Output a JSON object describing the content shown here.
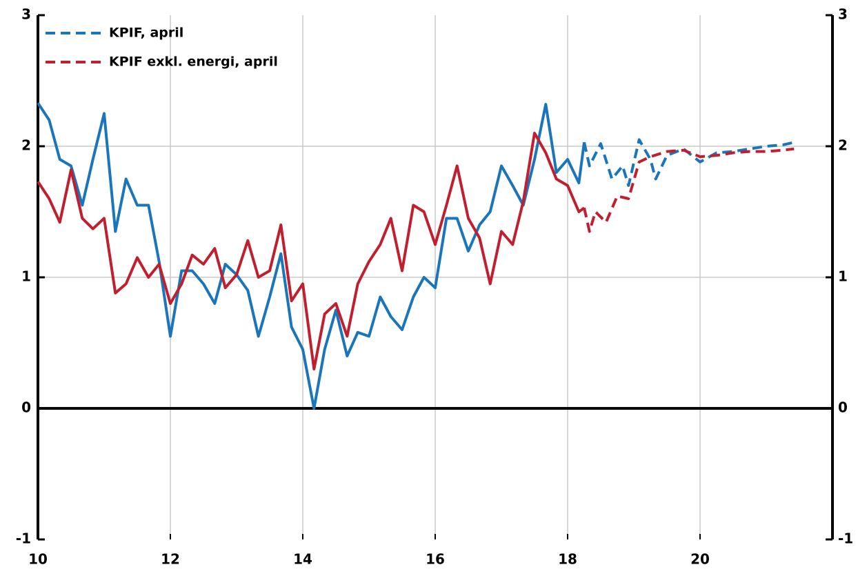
{
  "chart_data": {
    "type": "line",
    "xlim": [
      10,
      22
    ],
    "xticks": [
      10,
      12,
      14,
      16,
      18,
      20
    ],
    "ylim": [
      -1,
      3
    ],
    "yticks": [
      3,
      2,
      1,
      0,
      -1
    ],
    "grid": true,
    "legend": "upper left",
    "right_axis": true,
    "series": [
      {
        "color": "#1b75bb",
        "dashed": false,
        "x": [
          10.0,
          10.17,
          10.33,
          10.5,
          10.67,
          10.83,
          11.0,
          11.17,
          11.33,
          11.5,
          11.67,
          11.83,
          12.0,
          12.17,
          12.33,
          12.5,
          12.67,
          12.83,
          13.0,
          13.17,
          13.33,
          13.5,
          13.67,
          13.83,
          14.0,
          14.17,
          14.33,
          14.5,
          14.67,
          14.83,
          15.0,
          15.17,
          15.33,
          15.5,
          15.67,
          15.83,
          16.0,
          16.17,
          16.33,
          16.5,
          16.67,
          16.83,
          17.0,
          17.17,
          17.33,
          17.5,
          17.67,
          17.83,
          18.0,
          18.17,
          18.25
        ],
        "values": [
          2.33,
          2.2,
          1.9,
          1.85,
          1.55,
          1.9,
          2.25,
          1.35,
          1.75,
          1.55,
          1.55,
          1.12,
          0.55,
          1.05,
          1.05,
          0.95,
          0.8,
          1.1,
          1.02,
          0.9,
          0.55,
          0.85,
          1.18,
          0.62,
          0.45,
          0.0,
          0.45,
          0.75,
          0.4,
          0.58,
          0.55,
          0.85,
          0.7,
          0.6,
          0.85,
          1.0,
          0.92,
          1.45,
          1.45,
          1.2,
          1.4,
          1.5,
          1.85,
          1.7,
          1.55,
          1.9,
          2.32,
          1.8,
          1.9,
          1.72,
          2.03
        ]
      },
      {
        "name": "KPIF, april",
        "color": "#1b75bb",
        "dashed": true,
        "x": [
          18.25,
          18.33,
          18.5,
          18.67,
          18.83,
          18.92,
          19.08,
          19.25,
          19.33,
          19.5,
          19.75,
          20.0,
          20.25,
          20.5,
          20.75,
          21.0,
          21.25,
          21.42
        ],
        "values": [
          2.03,
          1.85,
          2.02,
          1.75,
          1.85,
          1.7,
          2.05,
          1.9,
          1.75,
          1.93,
          1.98,
          1.88,
          1.95,
          1.96,
          1.98,
          2.0,
          2.01,
          2.03
        ]
      },
      {
        "color": "#c01f2f",
        "dashed": false,
        "x": [
          10.0,
          10.17,
          10.33,
          10.5,
          10.67,
          10.83,
          11.0,
          11.17,
          11.33,
          11.5,
          11.67,
          11.83,
          12.0,
          12.17,
          12.33,
          12.5,
          12.67,
          12.83,
          13.0,
          13.17,
          13.33,
          13.5,
          13.67,
          13.83,
          14.0,
          14.17,
          14.33,
          14.5,
          14.67,
          14.83,
          15.0,
          15.17,
          15.33,
          15.5,
          15.67,
          15.83,
          16.0,
          16.17,
          16.33,
          16.5,
          16.67,
          16.83,
          17.0,
          17.17,
          17.33,
          17.5,
          17.67,
          17.83,
          18.0,
          18.17,
          18.25
        ],
        "values": [
          1.73,
          1.6,
          1.42,
          1.82,
          1.45,
          1.37,
          1.45,
          0.88,
          0.95,
          1.15,
          1.0,
          1.1,
          0.8,
          0.95,
          1.17,
          1.1,
          1.22,
          0.92,
          1.02,
          1.28,
          1.0,
          1.05,
          1.4,
          0.82,
          0.95,
          0.3,
          0.72,
          0.8,
          0.55,
          0.95,
          1.12,
          1.25,
          1.45,
          1.05,
          1.55,
          1.5,
          1.25,
          1.55,
          1.85,
          1.45,
          1.3,
          0.95,
          1.35,
          1.25,
          1.58,
          2.1,
          1.95,
          1.75,
          1.7,
          1.5,
          1.53
        ]
      },
      {
        "name": "KPIF exkl. energi, april",
        "color": "#c01f2f",
        "dashed": true,
        "x": [
          18.25,
          18.33,
          18.42,
          18.58,
          18.75,
          18.92,
          19.08,
          19.25,
          19.5,
          19.75,
          20.0,
          20.25,
          20.5,
          20.75,
          21.0,
          21.25,
          21.42
        ],
        "values": [
          1.53,
          1.35,
          1.5,
          1.42,
          1.62,
          1.6,
          1.88,
          1.92,
          1.96,
          1.97,
          1.92,
          1.93,
          1.95,
          1.96,
          1.96,
          1.97,
          1.98
        ]
      }
    ]
  }
}
